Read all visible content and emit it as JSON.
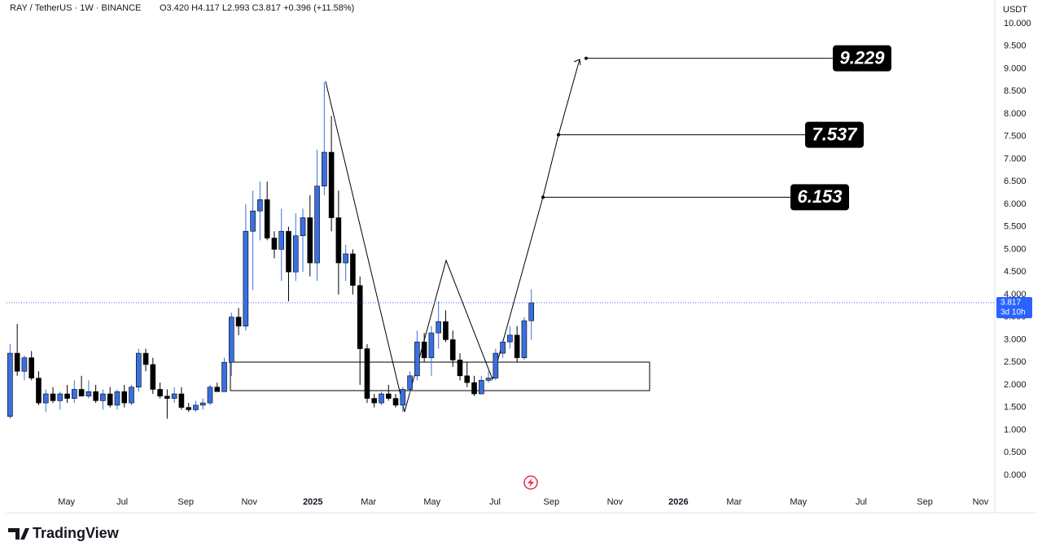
{
  "chart_data": {
    "type": "candlestick",
    "title": "RAY / TetherUS · 1W · BINANCE",
    "ohlc_legend": "O3.420  H4.117  L2.993  C3.817  +0.396 (+11.58%)",
    "currency": "USDT",
    "countdown": "3d 10h",
    "brand": "TradingView",
    "up_color": "#3a6fe0",
    "down_color": "#000000",
    "grid": false,
    "open": [
      1.3,
      2.7,
      2.3,
      2.6,
      2.15,
      1.6,
      1.8,
      1.65,
      1.8,
      1.7,
      1.9,
      1.75,
      1.85,
      1.65,
      1.8,
      1.55,
      1.85,
      1.6,
      1.95,
      2.7,
      2.45,
      1.9,
      1.75,
      1.7,
      1.8,
      1.5,
      1.45,
      1.55,
      1.6,
      1.95,
      1.85,
      2.5,
      3.5,
      3.3,
      5.4,
      5.85,
      6.1,
      5.25,
      5.0,
      5.4,
      4.5,
      5.3,
      5.7,
      4.7,
      6.4,
      7.15,
      5.7,
      4.7,
      4.9,
      4.2,
      2.8,
      1.7,
      1.6,
      1.8,
      1.7,
      1.55,
      1.9,
      2.2,
      2.95,
      2.6,
      3.15,
      3.4,
      3.0,
      2.55,
      2.2,
      2.05,
      1.8,
      2.1,
      2.15,
      2.7,
      2.95,
      3.1,
      2.6,
      3.42
    ],
    "high": [
      2.9,
      3.35,
      2.65,
      2.75,
      2.3,
      1.9,
      1.95,
      1.85,
      2.0,
      2.1,
      2.2,
      2.1,
      2.0,
      1.9,
      1.95,
      1.9,
      2.0,
      2.0,
      2.8,
      2.8,
      2.6,
      2.05,
      1.9,
      1.95,
      1.95,
      1.6,
      1.65,
      1.7,
      2.0,
      2.05,
      2.6,
      3.6,
      3.7,
      6.0,
      6.3,
      6.5,
      6.5,
      5.4,
      5.9,
      5.5,
      5.8,
      5.9,
      6.2,
      7.2,
      8.7,
      7.95,
      6.3,
      5.1,
      5.0,
      4.4,
      2.9,
      1.8,
      1.85,
      2.0,
      1.8,
      1.95,
      2.3,
      3.2,
      3.15,
      3.3,
      3.85,
      3.65,
      3.2,
      2.7,
      2.5,
      2.2,
      2.2,
      2.3,
      2.8,
      3.0,
      3.3,
      3.3,
      3.5,
      4.117
    ],
    "low": [
      1.25,
      2.2,
      2.1,
      2.1,
      1.55,
      1.4,
      1.6,
      1.45,
      1.6,
      1.6,
      1.75,
      1.7,
      1.6,
      1.45,
      1.5,
      1.45,
      1.5,
      1.55,
      1.85,
      2.3,
      1.8,
      1.7,
      1.25,
      1.6,
      1.45,
      1.4,
      1.4,
      1.45,
      1.55,
      1.85,
      1.85,
      2.2,
      3.1,
      3.2,
      4.1,
      5.2,
      5.2,
      4.8,
      4.3,
      3.85,
      4.3,
      4.5,
      4.4,
      4.3,
      6.2,
      5.4,
      4.0,
      4.3,
      4.0,
      2.0,
      1.6,
      1.5,
      1.55,
      1.65,
      1.5,
      1.4,
      1.8,
      2.1,
      2.5,
      2.2,
      2.8,
      2.95,
      2.4,
      2.1,
      1.95,
      1.75,
      1.8,
      2.05,
      2.1,
      2.6,
      2.8,
      2.5,
      2.55,
      2.993
    ],
    "close": [
      2.7,
      2.3,
      2.6,
      2.15,
      1.6,
      1.8,
      1.65,
      1.8,
      1.7,
      1.9,
      1.75,
      1.85,
      1.65,
      1.8,
      1.55,
      1.85,
      1.6,
      1.95,
      2.7,
      2.45,
      1.9,
      1.75,
      1.7,
      1.8,
      1.5,
      1.45,
      1.55,
      1.6,
      1.95,
      1.85,
      2.5,
      3.5,
      3.3,
      5.4,
      5.85,
      6.1,
      5.25,
      5.0,
      5.4,
      4.5,
      5.3,
      5.7,
      4.7,
      6.4,
      7.15,
      5.7,
      4.7,
      4.9,
      4.2,
      2.8,
      1.7,
      1.6,
      1.8,
      1.7,
      1.55,
      1.9,
      2.2,
      2.95,
      2.6,
      3.15,
      3.4,
      3.0,
      2.55,
      2.2,
      2.05,
      1.8,
      2.1,
      2.15,
      2.7,
      2.95,
      3.1,
      2.6,
      3.42,
      3.817
    ],
    "targets": [
      9.229,
      7.537,
      6.153
    ],
    "xlim": [
      -0.5,
      137.9
    ],
    "xticks": [
      {
        "value": 7.9,
        "label": "May"
      },
      {
        "value": 15.7,
        "label": "Jul"
      },
      {
        "value": 24.6,
        "label": "Sep"
      },
      {
        "value": 33.5,
        "label": "Nov"
      },
      {
        "value": 42.4,
        "label": "2025"
      },
      {
        "value": 50.2,
        "label": "Mar"
      },
      {
        "value": 59.1,
        "label": "May"
      },
      {
        "value": 67.9,
        "label": "Jul"
      },
      {
        "value": 75.8,
        "label": "Sep"
      },
      {
        "value": 84.7,
        "label": "Nov"
      },
      {
        "value": 93.6,
        "label": "2026"
      },
      {
        "value": 101.4,
        "label": "Mar"
      },
      {
        "value": 110.4,
        "label": "May"
      },
      {
        "value": 119.2,
        "label": "Jul"
      },
      {
        "value": 128.1,
        "label": "Sep"
      },
      {
        "value": 135.9,
        "label": "Nov"
      }
    ],
    "ylim": [
      -0.83,
      10.52
    ],
    "yticks": [
      {
        "value": 0,
        "label": "0.000"
      },
      {
        "value": 0.5,
        "label": "0.500"
      },
      {
        "value": 1,
        "label": "1.000"
      },
      {
        "value": 1.5,
        "label": "1.500"
      },
      {
        "value": 2,
        "label": "2.000"
      },
      {
        "value": 2.5,
        "label": "2.500"
      },
      {
        "value": 3,
        "label": "3.000"
      },
      {
        "value": 3.5,
        "label": "3.500"
      },
      {
        "value": 4,
        "label": "4.000"
      },
      {
        "value": 4.5,
        "label": "4.500"
      },
      {
        "value": 5,
        "label": "5.000"
      },
      {
        "value": 5.5,
        "label": "5.500"
      },
      {
        "value": 6,
        "label": "6.000"
      },
      {
        "value": 6.5,
        "label": "6.500"
      },
      {
        "value": 7,
        "label": "7.000"
      },
      {
        "value": 7.5,
        "label": "7.500"
      },
      {
        "value": 8,
        "label": "8.000"
      },
      {
        "value": 8.5,
        "label": "8.500"
      },
      {
        "value": 9,
        "label": "9.000"
      },
      {
        "value": 9.5,
        "label": "9.500"
      },
      {
        "value": 10,
        "label": "10.000"
      }
    ]
  }
}
